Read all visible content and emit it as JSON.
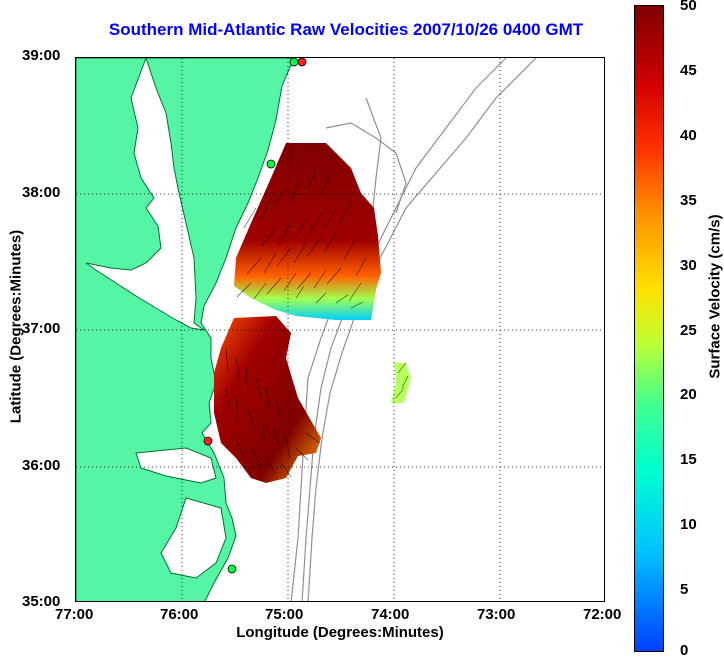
{
  "title": "Southern Mid-Atlantic Raw Velocities 2007/10/26 0400 GMT",
  "xlabel": "Longitude (Degrees:Minutes)",
  "ylabel": "Latitude (Degrees:Minutes)",
  "colorbar": {
    "label": "Surface Velocity (cm/s)",
    "ticks": [
      "50",
      "45",
      "40",
      "35",
      "30",
      "25",
      "20",
      "15",
      "10",
      "5",
      "0"
    ],
    "colors": [
      "#0040ff",
      "#00c0ff",
      "#00ffd0",
      "#40ff90",
      "#c0ff30",
      "#ffe000",
      "#ff9000",
      "#ff3000",
      "#d00000",
      "#800000"
    ]
  },
  "x_ticks": [
    "77:00",
    "76:00",
    "75:00",
    "74:00",
    "73:00",
    "72:00"
  ],
  "y_ticks": [
    "39:00",
    "38:00",
    "37:00",
    "36:00",
    "35:00"
  ],
  "land_color": "#55f5a5",
  "station_colors": {
    "green": "#00ff40",
    "red": "#ff2020"
  }
}
